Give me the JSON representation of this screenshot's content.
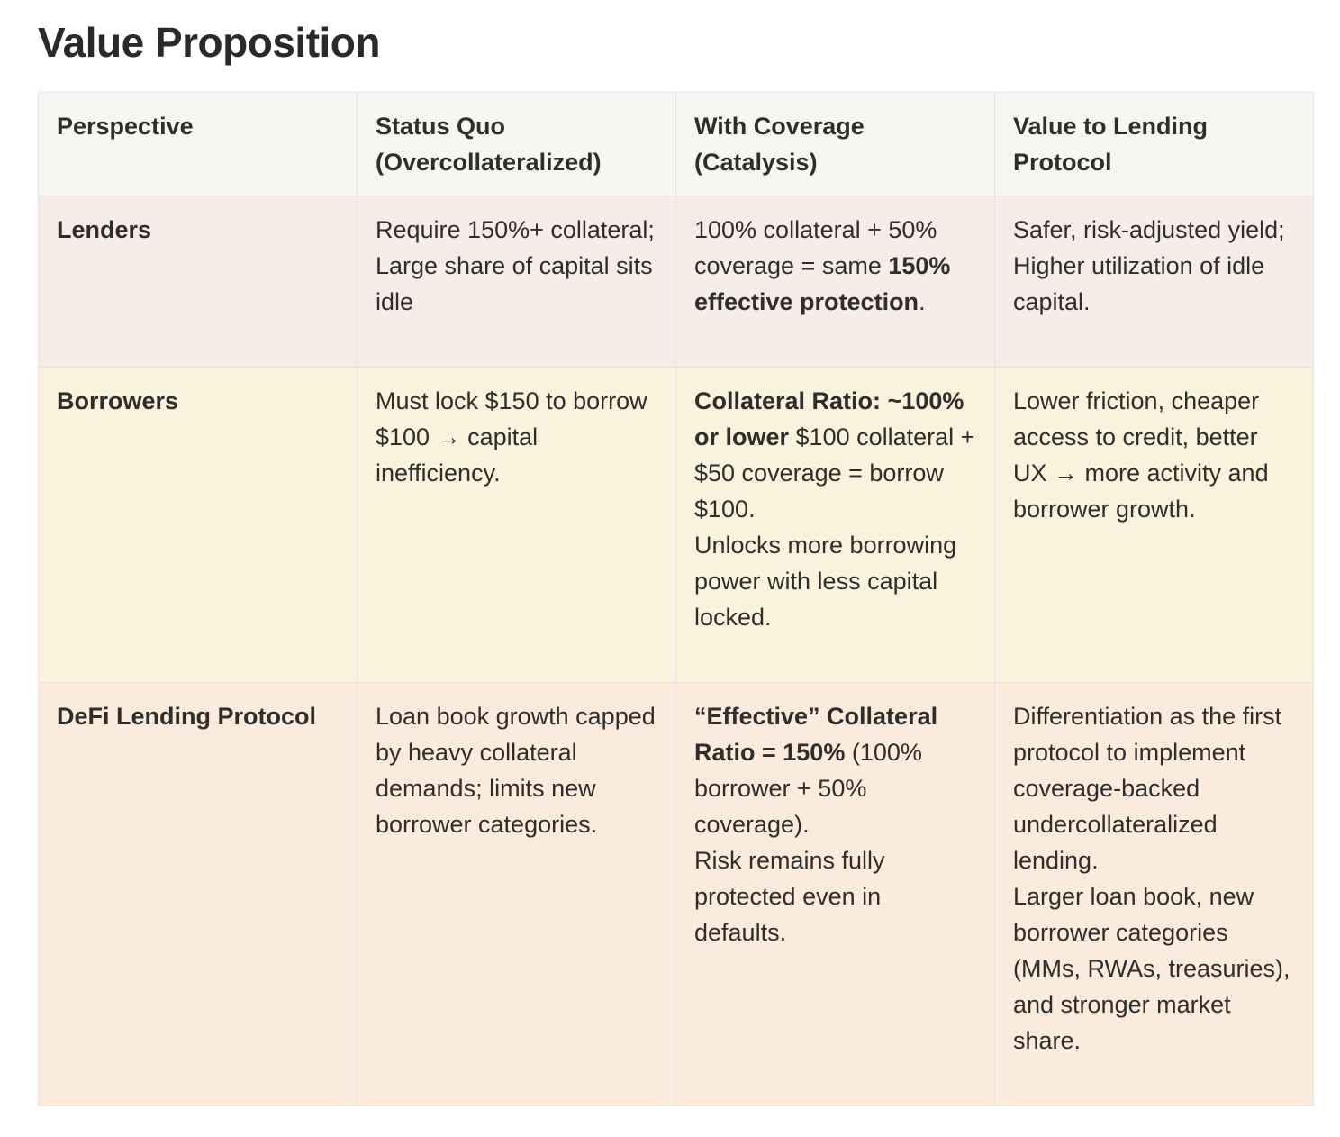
{
  "page": {
    "title": "Value Proposition"
  },
  "table": {
    "headers": [
      "Perspective",
      "Status Quo (Overcollateralized)",
      "With Coverage (Catalysis)",
      "Value to Lending Protocol"
    ],
    "rows": [
      {
        "perspective": "Lenders",
        "status_quo": {
          "line1": "Require 150%+ collateral;",
          "line2": "Large share of capital sits idle"
        },
        "with_coverage": {
          "text1": "100% collateral + 50% coverage = same ",
          "bold1": "150% effective protection",
          "text2": "."
        },
        "value": {
          "line1": "Safer, risk-adjusted yield;",
          "line2": "Higher utilization of idle capital."
        },
        "background": "#f6ece8"
      },
      {
        "perspective": "Borrowers",
        "status_quo": {
          "line1": "Must lock $150 to borrow $100 → capital inefficiency."
        },
        "with_coverage": {
          "bold1": "Collateral Ratio: ~100% or lower",
          "text1": " $100 collateral + $50 coverage = borrow $100.",
          "line2": "Unlocks more borrowing power with less capital locked."
        },
        "value": {
          "line1": "Lower friction, cheaper access to credit, better UX → more activity and borrower growth."
        },
        "background": "#f9f3dd"
      },
      {
        "perspective": "DeFi Lending Protocol",
        "status_quo": {
          "line1": "Loan book growth capped by heavy collateral demands; limits new borrower categories."
        },
        "with_coverage": {
          "bold1": "“Effective” Collateral Ratio = 150%",
          "text1": " (100% borrower + 50% coverage).",
          "line2": "Risk remains fully protected even in defaults."
        },
        "value": {
          "line1": "Differentiation as the first protocol to implement coverage-backed undercollateralized lending.",
          "line2": "Larger loan book, new borrower categories (MMs, RWAs, treasuries), and stronger market share."
        },
        "background": "#faebdd"
      }
    ]
  },
  "colors": {
    "header_bg": "#f7f6f3",
    "border": "#e6e4e0",
    "text": "#2f2e2b"
  }
}
